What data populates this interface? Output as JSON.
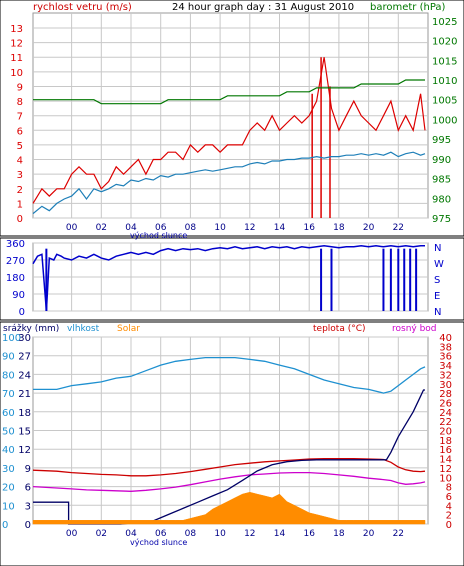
{
  "chart_data": [
    {
      "type": "line",
      "panel": "wind-barometer",
      "title": "24 hour graph day : 31 August 2010",
      "legend_left": "rychlost vetru (m/s)",
      "legend_right": "barometr (hPa)",
      "x_tick_labels": [
        "00",
        "02",
        "04",
        "06",
        "08",
        "10",
        "12",
        "14",
        "16",
        "18",
        "20",
        "22"
      ],
      "x_annotation": "východ slunce",
      "xlim": [
        -2.6,
        24
      ],
      "y_left": {
        "ticks": [
          0,
          1,
          2,
          3,
          4,
          5,
          6,
          7,
          8,
          9,
          10,
          11,
          12,
          13
        ],
        "lim": [
          0,
          13
        ]
      },
      "y_right": {
        "ticks": [
          975,
          980,
          985,
          990,
          995,
          1000,
          1005,
          1010,
          1015,
          1020,
          1025
        ],
        "lim": [
          975,
          1027
        ]
      },
      "series": [
        {
          "name": "rychlost vetru",
          "axis": "left",
          "color": "#dd0000",
          "x": [
            -2.6,
            -2,
            -1.5,
            -1,
            -0.5,
            0,
            0.5,
            1,
            1.5,
            2,
            2.5,
            3,
            3.5,
            4,
            4.5,
            5,
            5.5,
            6,
            6.5,
            7,
            7.5,
            8,
            8.5,
            9,
            9.5,
            10,
            10.5,
            11,
            11.5,
            12,
            12.5,
            13,
            13.5,
            14,
            14.5,
            15,
            15.5,
            16,
            16.5,
            17,
            17.5,
            18,
            18.5,
            19,
            19.5,
            20,
            20.5,
            21,
            21.5,
            22,
            22.5,
            23,
            23.5,
            23.8
          ],
          "y": [
            1,
            2,
            1.5,
            2,
            2,
            3,
            3.5,
            3,
            3,
            2,
            2.5,
            3.5,
            3,
            3.5,
            4,
            3,
            4,
            4,
            4.5,
            4.5,
            4,
            5,
            4.5,
            5,
            5,
            4.5,
            5,
            5,
            5,
            6,
            6.5,
            6,
            7,
            6,
            6.5,
            7,
            6.5,
            7,
            8,
            11,
            7.5,
            6,
            7,
            8,
            7,
            6.5,
            6,
            7,
            8,
            6,
            7,
            6,
            8.5,
            6
          ]
        },
        {
          "name": "nárazy",
          "axis": "left",
          "color": "#dd0000",
          "x": [
            16.2,
            16.8,
            17.4
          ],
          "y": [
            8.5,
            11,
            9
          ]
        },
        {
          "name": "barometr",
          "axis": "right",
          "color": "#007700",
          "x": [
            -2.6,
            1.5,
            2,
            6,
            6.5,
            10,
            10.5,
            14,
            14.5,
            16,
            16.5,
            19,
            19.5,
            22,
            22.5,
            23.8
          ],
          "y": [
            1005,
            1005,
            1004,
            1004,
            1005,
            1005,
            1006,
            1006,
            1007,
            1007,
            1008,
            1008,
            1009,
            1009,
            1010,
            1010
          ]
        },
        {
          "name": "vlhkost proxy (wind avg)",
          "axis": "left",
          "color": "#1e7fb8",
          "x": [
            -2.6,
            -2,
            -1.5,
            -1,
            -0.5,
            0,
            0.5,
            1,
            1.5,
            2,
            2.5,
            3,
            3.5,
            4,
            4.5,
            5,
            5.5,
            6,
            6.5,
            7,
            7.5,
            8,
            8.5,
            9,
            9.5,
            10,
            10.5,
            11,
            11.5,
            12,
            12.5,
            13,
            13.5,
            14,
            14.5,
            15,
            15.5,
            16,
            16.5,
            17,
            17.5,
            18,
            18.5,
            19,
            19.5,
            20,
            20.5,
            21,
            21.5,
            22,
            22.5,
            23,
            23.5,
            23.8
          ],
          "y": [
            0.3,
            0.8,
            0.5,
            1,
            1.3,
            1.5,
            2,
            1.3,
            2,
            1.8,
            2,
            2.3,
            2.2,
            2.6,
            2.5,
            2.7,
            2.6,
            2.9,
            2.8,
            3,
            3,
            3.1,
            3.2,
            3.3,
            3.2,
            3.3,
            3.4,
            3.5,
            3.5,
            3.7,
            3.8,
            3.7,
            3.9,
            3.9,
            4,
            4,
            4.1,
            4.1,
            4.2,
            4.1,
            4.2,
            4.2,
            4.3,
            4.3,
            4.4,
            4.3,
            4.4,
            4.3,
            4.5,
            4.2,
            4.4,
            4.5,
            4.3,
            4.4
          ]
        }
      ]
    },
    {
      "type": "line",
      "panel": "wind-direction",
      "xlim": [
        -2.6,
        24
      ],
      "y_left": {
        "ticks": [
          0,
          90,
          180,
          270,
          360
        ],
        "lim": [
          0,
          360
        ]
      },
      "y_right_labels": [
        "N",
        "W",
        "S",
        "E",
        "N"
      ],
      "series": [
        {
          "name": "směr větru",
          "color": "#0000cc",
          "x": [
            -2.6,
            -2.3,
            -2,
            -1.7,
            -1.5,
            -1.2,
            -1,
            -0.7,
            -0.5,
            0,
            0.5,
            1,
            1.5,
            2,
            2.5,
            3,
            3.5,
            4,
            4.5,
            5,
            5.5,
            6,
            6.5,
            7,
            7.5,
            8,
            8.5,
            9,
            9.5,
            10,
            10.5,
            11,
            11.5,
            12,
            12.5,
            13,
            13.5,
            14,
            14.5,
            15,
            15.5,
            16,
            16.5,
            17,
            17.5,
            18,
            18.5,
            19,
            19.5,
            20,
            20.5,
            21,
            21.5,
            22,
            22.5,
            23,
            23.5,
            23.8
          ],
          "y": [
            250,
            290,
            300,
            0,
            280,
            270,
            300,
            290,
            280,
            270,
            290,
            280,
            300,
            280,
            270,
            290,
            300,
            310,
            300,
            310,
            300,
            320,
            330,
            320,
            330,
            325,
            330,
            320,
            330,
            335,
            330,
            340,
            330,
            335,
            340,
            330,
            340,
            335,
            340,
            330,
            340,
            335,
            340,
            345,
            340,
            335,
            340,
            340,
            345,
            340,
            345,
            340,
            345,
            340,
            345,
            340,
            345,
            345
          ]
        },
        {
          "name": "drops",
          "color": "#0000cc",
          "x": [
            -1.7,
            16.8,
            17.5,
            21.0,
            21.5,
            22.0,
            22.4,
            22.8,
            23.2
          ],
          "y": [
            0,
            0,
            0,
            0,
            0,
            0,
            0,
            0,
            0
          ]
        }
      ]
    },
    {
      "type": "line",
      "panel": "precipitation-humidity-temperature",
      "legend": [
        "srážky (mm)",
        "vlhkost",
        "Solar",
        "teplota (°C)",
        "rosný bod"
      ],
      "x_tick_labels": [
        "00",
        "02",
        "04",
        "06",
        "08",
        "10",
        "12",
        "14",
        "16",
        "18",
        "20",
        "22"
      ],
      "x_annotation": "východ slunce",
      "xlim": [
        -2.6,
        24
      ],
      "y_precip": {
        "ticks": [
          0,
          3,
          6,
          9,
          12,
          15,
          18,
          21,
          24,
          27,
          30
        ],
        "lim": [
          0,
          30
        ]
      },
      "y_humidity": {
        "ticks": [
          0,
          10,
          20,
          30,
          40,
          50,
          60,
          70,
          80,
          90,
          100
        ],
        "lim": [
          0,
          100
        ]
      },
      "y_temperature": {
        "ticks": [
          0,
          2,
          4,
          6,
          8,
          10,
          12,
          14,
          16,
          18,
          20,
          22,
          24,
          26,
          28,
          30,
          32,
          34,
          36,
          38,
          40
        ],
        "lim": [
          0,
          40
        ]
      },
      "series": [
        {
          "name": "vlhkost",
          "axis": "humidity",
          "color": "#1e90d0",
          "x": [
            -2.6,
            -1,
            0,
            1,
            2,
            3,
            4,
            5,
            6,
            7,
            8,
            9,
            10,
            11,
            12,
            13,
            14,
            15,
            16,
            17,
            18,
            19,
            20,
            21,
            21.5,
            22,
            22.5,
            23,
            23.5,
            23.8
          ],
          "y": [
            72,
            72,
            74,
            75,
            76,
            78,
            79,
            82,
            85,
            87,
            88,
            89,
            89,
            89,
            88,
            87,
            85,
            83,
            80,
            77,
            75,
            73,
            72,
            70,
            71,
            74,
            77,
            80,
            83,
            84
          ]
        },
        {
          "name": "teplota",
          "axis": "temperature",
          "color": "#cc0000",
          "x": [
            -2.6,
            -1,
            0,
            1,
            2,
            3,
            4,
            5,
            6,
            7,
            8,
            9,
            10,
            11,
            12,
            13,
            14,
            15,
            16,
            17,
            18,
            19,
            20,
            21,
            21.5,
            22,
            22.5,
            23,
            23.5,
            23.8
          ],
          "y": [
            11.5,
            11.3,
            11,
            10.8,
            10.6,
            10.5,
            10.3,
            10.3,
            10.5,
            10.8,
            11.2,
            11.7,
            12.2,
            12.7,
            13,
            13.3,
            13.5,
            13.7,
            13.9,
            14,
            14,
            14,
            13.9,
            13.8,
            13.2,
            12.2,
            11.6,
            11.3,
            11.2,
            11.3
          ]
        },
        {
          "name": "rosný bod",
          "axis": "temperature",
          "color": "#cc00cc",
          "x": [
            -2.6,
            -1,
            0,
            1,
            2,
            3,
            4,
            5,
            6,
            7,
            8,
            9,
            10,
            11,
            12,
            13,
            14,
            15,
            16,
            17,
            18,
            19,
            20,
            21,
            21.5,
            22,
            22.5,
            23,
            23.5,
            23.8
          ],
          "y": [
            8,
            7.7,
            7.5,
            7.3,
            7.2,
            7.1,
            7,
            7.2,
            7.5,
            7.9,
            8.4,
            9,
            9.6,
            10.1,
            10.5,
            10.7,
            10.9,
            11,
            11,
            10.8,
            10.5,
            10.2,
            9.8,
            9.5,
            9.3,
            8.8,
            8.5,
            8.6,
            8.8,
            9
          ]
        },
        {
          "name": "srážky",
          "axis": "precip",
          "color": "#000066",
          "x": [
            -2.6,
            -1.6,
            -0.2,
            -0.2,
            3.3,
            5.5,
            6.5,
            7.5,
            8.5,
            9.5,
            10.5,
            11.5,
            12.5,
            13.5,
            14.5,
            15.5,
            16.5,
            17.5,
            18.5,
            19.5,
            20.5,
            21.2,
            21.5,
            22,
            22.5,
            23,
            23.5,
            23.7,
            23.8
          ],
          "y": [
            3.5,
            3.5,
            3.5,
            0,
            0,
            0.5,
            1.5,
            2.5,
            3.5,
            4.5,
            5.5,
            7,
            8.5,
            9.5,
            10,
            10.2,
            10.3,
            10.3,
            10.3,
            10.3,
            10.3,
            10.3,
            11.5,
            14,
            16,
            18,
            20.5,
            21.5,
            21.5
          ]
        },
        {
          "name": "Solar",
          "axis": "humidity",
          "color": "#ff8c00",
          "x": [
            -2.6,
            5.5,
            6,
            6.5,
            7,
            7.5,
            8,
            8.5,
            9,
            9.5,
            10,
            10.5,
            11,
            11.5,
            12,
            12.5,
            13,
            13.5,
            14,
            14.5,
            15,
            15.5,
            16,
            16.5,
            17,
            17.5,
            18,
            18.5,
            19,
            23.8
          ],
          "y": [
            2,
            2,
            2,
            2,
            2,
            2,
            3,
            4,
            5,
            8,
            10,
            12,
            14,
            16,
            17,
            16,
            15,
            14,
            16,
            12,
            10,
            8,
            6,
            5,
            4,
            3,
            2,
            2,
            2,
            2
          ]
        }
      ]
    }
  ]
}
